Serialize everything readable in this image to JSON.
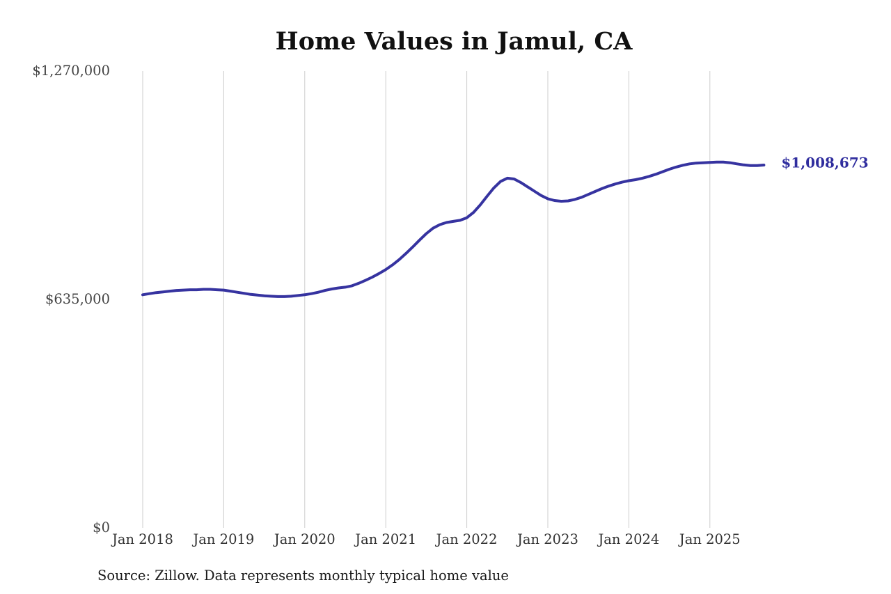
{
  "title": "Home Values in Jamul, CA",
  "source_note": "Source: Zillow. Data represents monthly typical home value",
  "end_label": "$1,008,673",
  "colors": {
    "line": "#3633a0",
    "grid": "#cccccc",
    "end_label": "#2f2d9e"
  },
  "chart_data": {
    "type": "line",
    "title": "Home Values in Jamul, CA",
    "xlabel": "",
    "ylabel": "",
    "ylim": [
      0,
      1270000
    ],
    "grid": "vertical-only",
    "legend": "none",
    "y_ticks": [
      {
        "label": "$0",
        "value": 0
      },
      {
        "label": "$635,000",
        "value": 635000
      },
      {
        "label": "$1,270,000",
        "value": 1270000
      }
    ],
    "x_ticks": [
      "Jan 2018",
      "Jan 2019",
      "Jan 2020",
      "Jan 2021",
      "Jan 2022",
      "Jan 2023",
      "Jan 2024",
      "Jan 2025"
    ],
    "x_start": "Jan 2018",
    "x_interval": "monthly",
    "last_value": 1008673,
    "series": [
      {
        "name": "Monthly typical home value",
        "values": [
          648000,
          651000,
          654000,
          656000,
          658000,
          660000,
          661000,
          662000,
          662000,
          663000,
          663000,
          662000,
          661000,
          658000,
          655000,
          652000,
          649000,
          647000,
          645000,
          644000,
          643000,
          643000,
          644000,
          646000,
          648000,
          651000,
          655000,
          660000,
          664000,
          667000,
          669000,
          673000,
          680000,
          688000,
          697000,
          707000,
          718000,
          731000,
          746000,
          763000,
          781000,
          800000,
          818000,
          833000,
          843000,
          849000,
          852000,
          855000,
          862000,
          877000,
          898000,
          922000,
          945000,
          963000,
          972000,
          970000,
          960000,
          948000,
          936000,
          924000,
          915000,
          910000,
          908000,
          909000,
          913000,
          919000,
          927000,
          935000,
          943000,
          950000,
          956000,
          961000,
          965000,
          968000,
          972000,
          977000,
          983000,
          990000,
          997000,
          1003000,
          1008000,
          1012000,
          1014000,
          1015000,
          1016000,
          1017000,
          1017000,
          1015000,
          1012000,
          1009000,
          1007000,
          1007000,
          1008673
        ]
      }
    ]
  }
}
